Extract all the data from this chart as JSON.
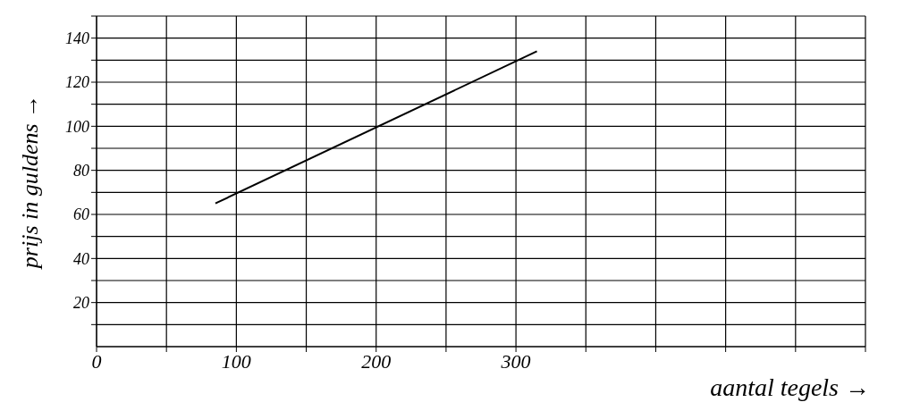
{
  "chart_data": {
    "type": "line",
    "xlabel": "aantal tegels →",
    "ylabel": "prijs in guldens →",
    "x": [
      85,
      315
    ],
    "series": [
      {
        "color": "#000000",
        "values": [
          65,
          134
        ]
      }
    ],
    "xlim": [
      0,
      550
    ],
    "xticks": [
      0,
      {
        "value": 50,
        "label": null
      },
      100,
      {
        "value": 150,
        "label": null
      },
      200,
      {
        "value": 250,
        "label": null
      },
      300,
      {
        "value": 350,
        "label": null
      },
      {
        "value": 400,
        "label": null
      },
      {
        "value": 450,
        "label": null
      },
      {
        "value": 500,
        "label": null
      },
      {
        "value": 550,
        "label": null
      }
    ],
    "ylim": [
      0,
      150
    ],
    "yticks": [
      {
        "value": 10,
        "label": null
      },
      20,
      {
        "value": 30,
        "label": null
      },
      40,
      {
        "value": 50,
        "label": null
      },
      60,
      {
        "value": 70,
        "label": null
      },
      80,
      {
        "value": 90,
        "label": null
      },
      100,
      {
        "value": 110,
        "label": null
      },
      120,
      {
        "value": 130,
        "label": null
      },
      140,
      {
        "value": 150,
        "label": null
      }
    ],
    "grid": true,
    "marker": "none",
    "line_style": "solid"
  }
}
